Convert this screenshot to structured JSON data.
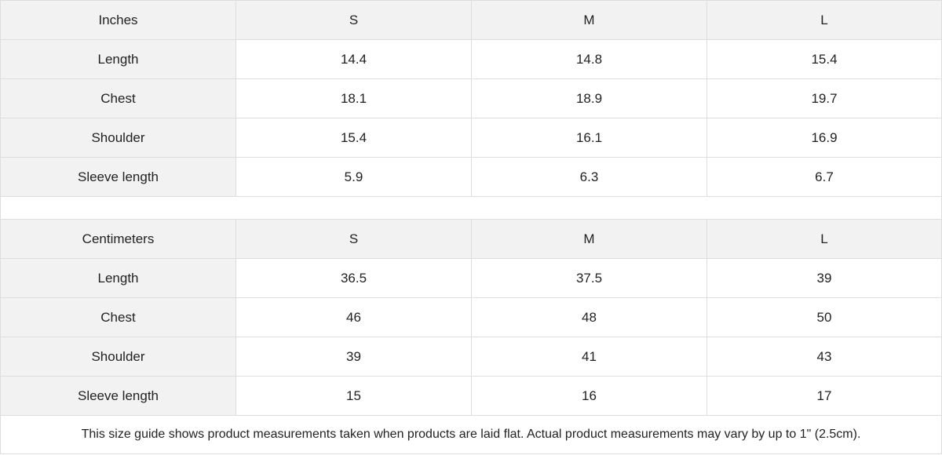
{
  "tables": [
    {
      "unit": "Inches",
      "sizes": [
        "S",
        "M",
        "L"
      ],
      "rows": [
        {
          "label": "Length",
          "values": [
            "14.4",
            "14.8",
            "15.4"
          ]
        },
        {
          "label": "Chest",
          "values": [
            "18.1",
            "18.9",
            "19.7"
          ]
        },
        {
          "label": "Shoulder",
          "values": [
            "15.4",
            "16.1",
            "16.9"
          ]
        },
        {
          "label": "Sleeve length",
          "values": [
            "5.9",
            "6.3",
            "6.7"
          ]
        }
      ]
    },
    {
      "unit": "Centimeters",
      "sizes": [
        "S",
        "M",
        "L"
      ],
      "rows": [
        {
          "label": "Length",
          "values": [
            "36.5",
            "37.5",
            "39"
          ]
        },
        {
          "label": "Chest",
          "values": [
            "46",
            "48",
            "50"
          ]
        },
        {
          "label": "Shoulder",
          "values": [
            "39",
            "41",
            "43"
          ]
        },
        {
          "label": "Sleeve length",
          "values": [
            "15",
            "16",
            "17"
          ]
        }
      ]
    }
  ],
  "note": "This size guide shows product measurements taken when products are laid flat.  Actual product measurements may vary by up to 1\" (2.5cm).",
  "colors": {
    "header_bg": "#f2f2f2",
    "border": "#dddddd",
    "text": "#222222"
  }
}
